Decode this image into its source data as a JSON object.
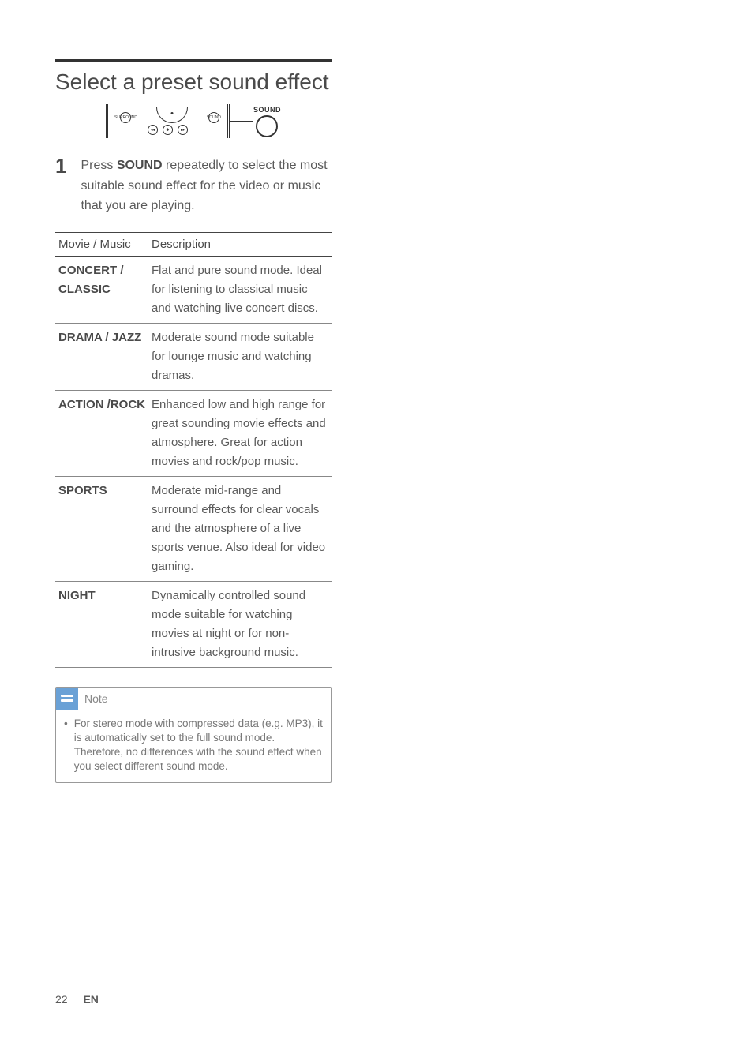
{
  "heading": "Select a preset sound effect",
  "diagram": {
    "sound_label": "SOUND",
    "sub_labels": [
      "SURROUND",
      "SOUND"
    ]
  },
  "step": {
    "number": "1",
    "prefix": "Press ",
    "bold": "SOUND",
    "suffix": " repeatedly to select the most suitable sound effect for the video or music that you are playing."
  },
  "table": {
    "headers": [
      "Movie / Music",
      "Description"
    ],
    "rows": [
      {
        "mode": "CONCERT / CLASSIC",
        "desc": "Flat and pure sound mode. Ideal for listening to classical music and watching live concert discs."
      },
      {
        "mode": "DRAMA / JAZZ",
        "desc": "Moderate sound mode suitable for lounge music and watching dramas."
      },
      {
        "mode": "ACTION /ROCK",
        "desc": "Enhanced low and high range for great sounding movie effects and atmosphere. Great for action movies and rock/pop music."
      },
      {
        "mode": "SPORTS",
        "desc": "Moderate mid-range and surround effects for clear vocals and the atmosphere of a live sports venue. Also ideal for video gaming."
      },
      {
        "mode": "NIGHT",
        "desc": "Dynamically controlled sound mode suitable for watching movies at night or for non-intrusive background music."
      }
    ]
  },
  "note": {
    "title": "Note",
    "body": "For stereo mode with compressed data (e.g. MP3), it is automatically set to the full sound mode.  Therefore, no differences with the sound effect when you select different sound mode."
  },
  "footer": {
    "page": "22",
    "lang": "EN"
  },
  "colors": {
    "text": "#5a5a5a",
    "heading": "#4a4a4a",
    "rule": "#333333",
    "note_icon_bg": "#6aa1d6"
  }
}
